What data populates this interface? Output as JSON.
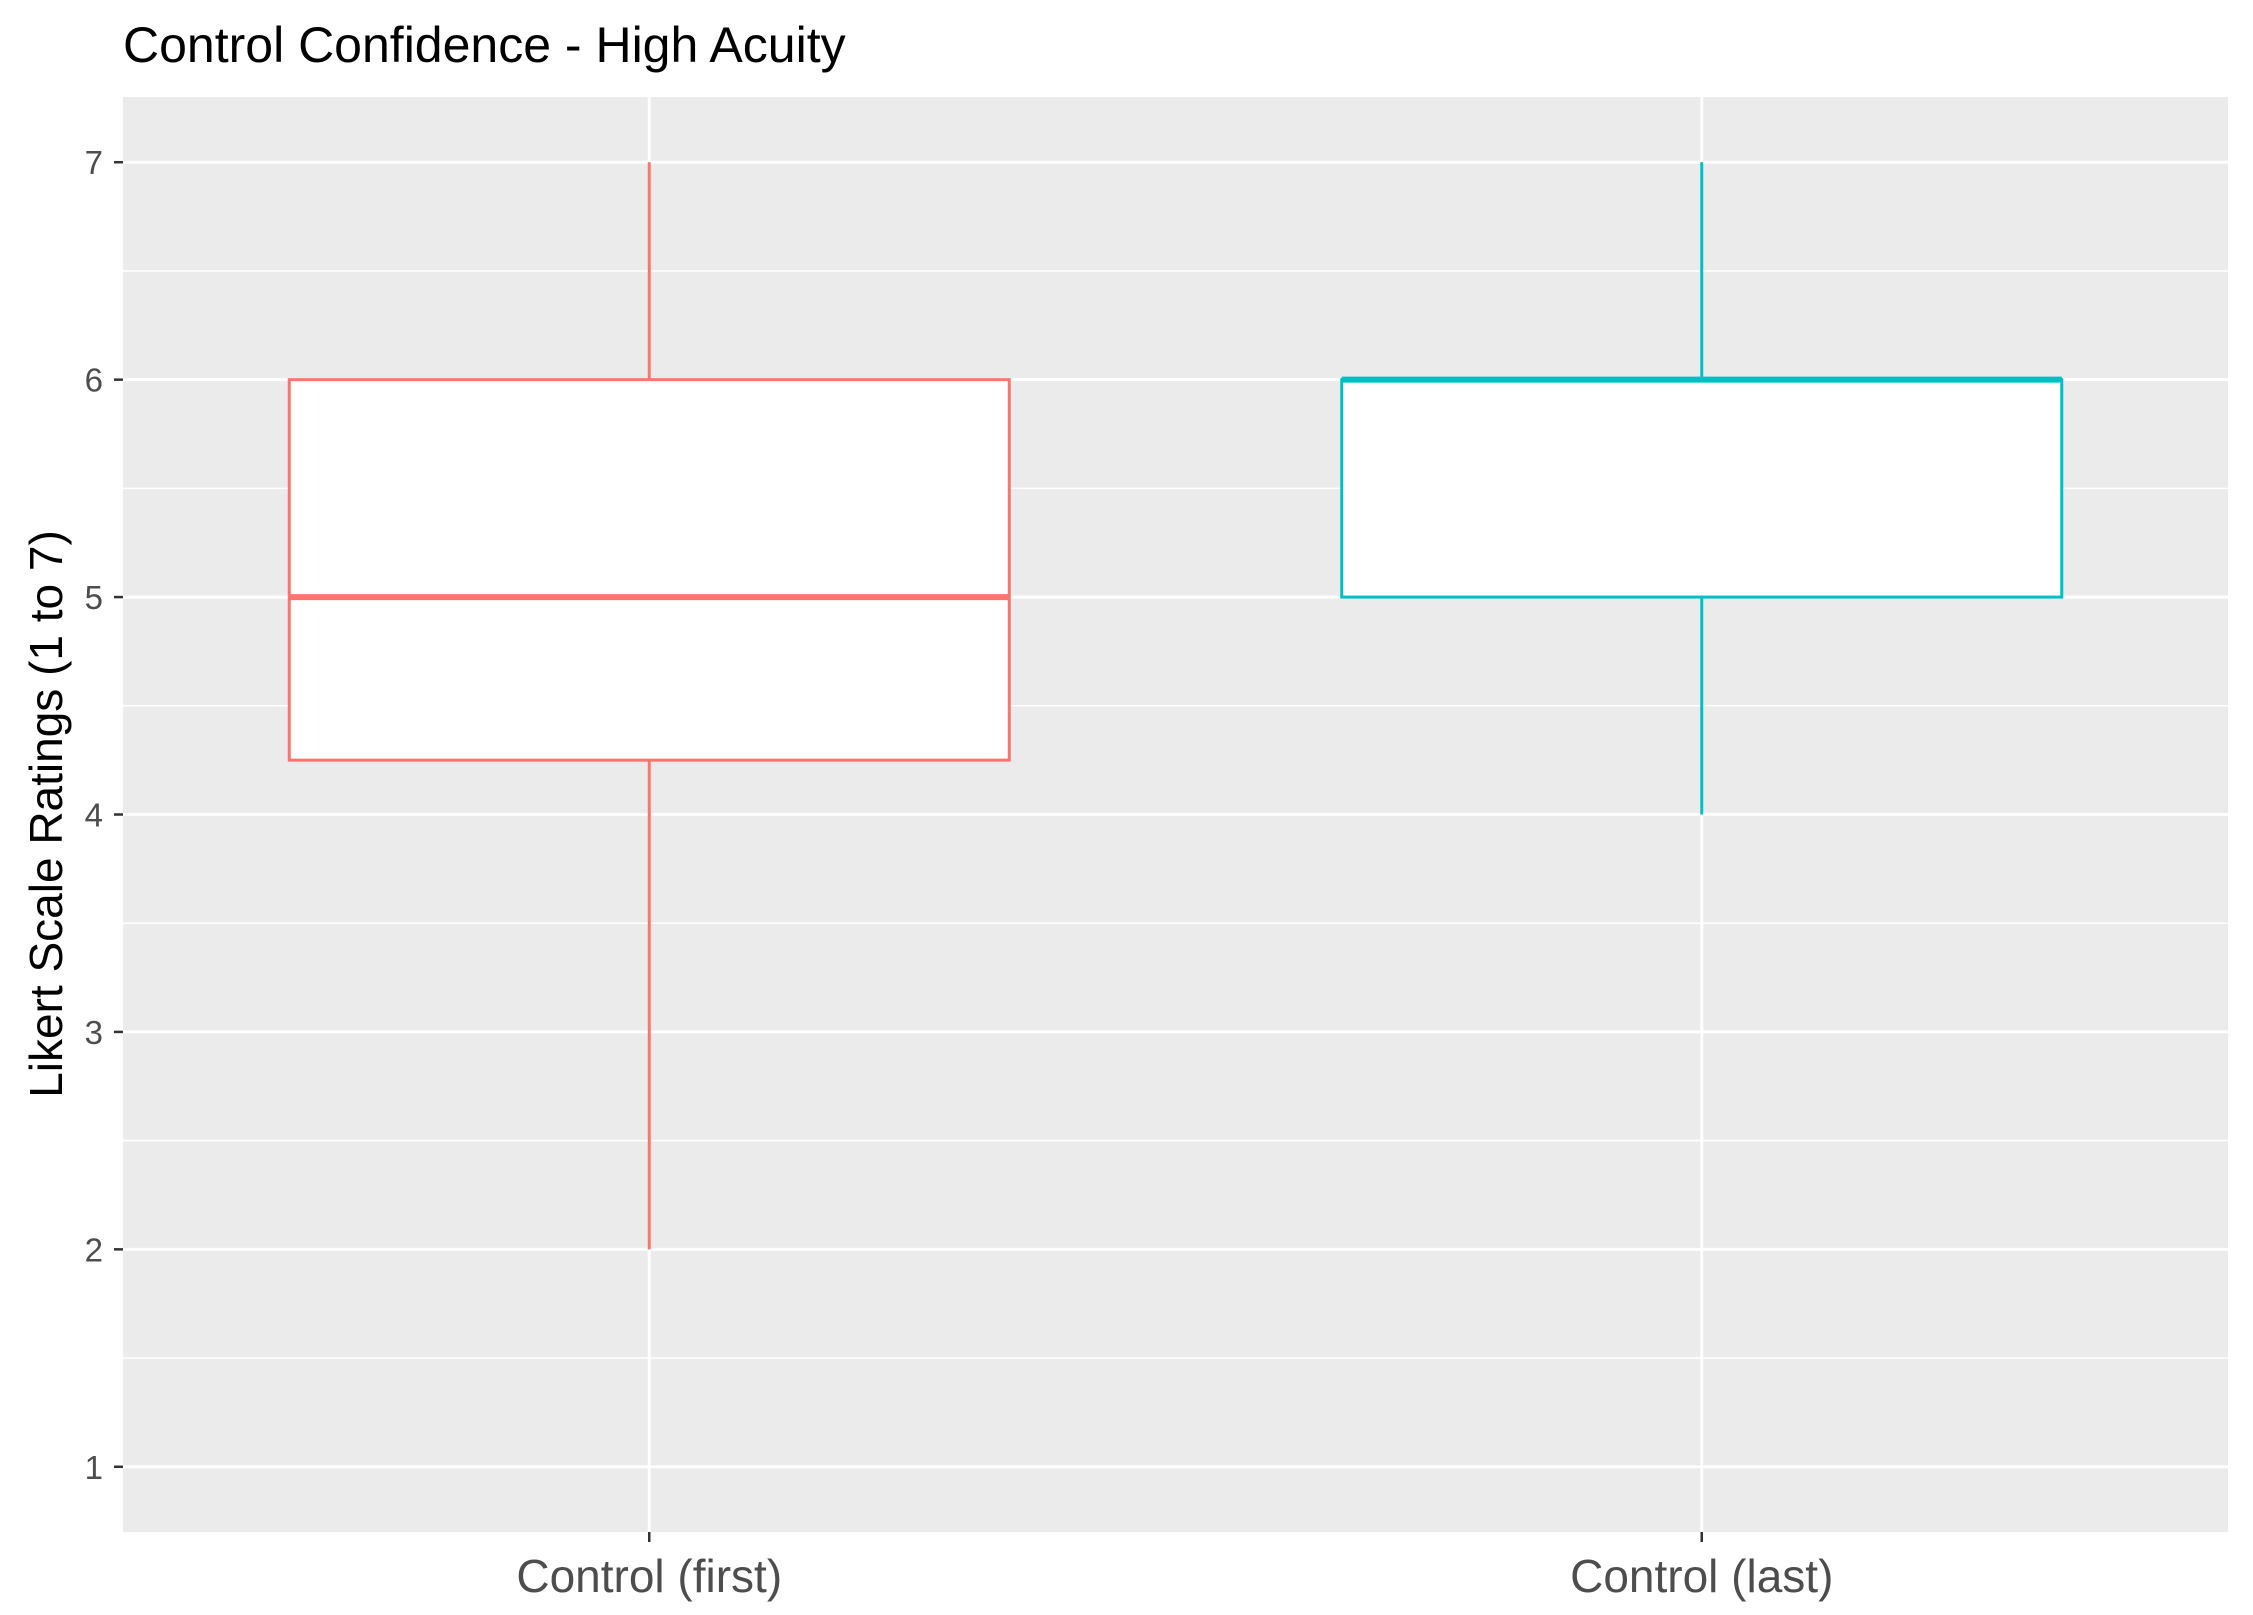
{
  "chart_data": {
    "type": "box",
    "title": "Control Confidence - High Acuity",
    "xlabel": "",
    "ylabel": "Likert Scale Ratings (1 to 7)",
    "ylim": [
      0.7,
      7.3
    ],
    "yticks": [
      "1",
      "2",
      "3",
      "4",
      "5",
      "6",
      "7"
    ],
    "grid": true,
    "legend": "none",
    "categories": [
      "Control (first)",
      "Control (last)"
    ],
    "boxes": [
      {
        "category": "Control (first)",
        "min": 2,
        "q1": 4.25,
        "median": 5,
        "q3": 6,
        "max": 7,
        "color": "#F8766D"
      },
      {
        "category": "Control (last)",
        "min": 4,
        "q1": 5,
        "median": 6,
        "q3": 6,
        "max": 7,
        "color": "#00BFC4"
      }
    ],
    "panel_color": "#EBEBEB",
    "grid_color": "#FFFFFF"
  }
}
